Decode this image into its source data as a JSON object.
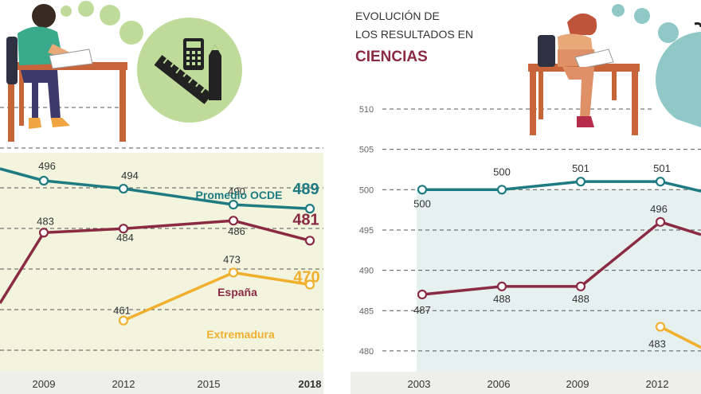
{
  "colors": {
    "ocde": "#1e7b82",
    "espana": "#8b2a43",
    "extremadura": "#f0b02e",
    "left_bg": "#f2f4de",
    "right_bg": "#e6f0ef",
    "axis_band": "#eeeeea",
    "circle_green": "#bfdb9a",
    "circle_teal": "#8fc8c7",
    "desk": "#c8643a",
    "text_dark": "#333333"
  },
  "left_panel": {
    "icon_names": [
      "student-writing-icon",
      "thought-bubble-icon",
      "calculator-icon",
      "ruler-icon",
      "pencil-icon"
    ]
  },
  "right_panel": {
    "title_line1": "EVOLUCIÓN DE",
    "title_line2": "LOS RESULTADOS EN",
    "subject": "CIENCIAS",
    "icon_names": [
      "student-writing-icon",
      "thought-bubble-icon"
    ]
  },
  "chart_data": [
    {
      "type": "line",
      "x": [
        "2009",
        "2012",
        "2015",
        "2018"
      ],
      "x_bold_last": true,
      "series": [
        {
          "name": "Promedio OCDE",
          "values": [
            496,
            494,
            490,
            489
          ],
          "point_labels": [
            "496",
            "494",
            "490",
            "489"
          ],
          "color_key": "ocde"
        },
        {
          "name": "España",
          "values": [
            483,
            484,
            486,
            481
          ],
          "point_labels": [
            "483",
            "484",
            "486",
            "481"
          ],
          "color_key": "espana"
        },
        {
          "name": "Extremadura",
          "values": [
            null,
            461,
            473,
            470
          ],
          "point_labels": [
            "",
            "461",
            "473",
            "470"
          ],
          "color_key": "extremadura"
        }
      ]
    },
    {
      "type": "line",
      "x": [
        "2003",
        "2006",
        "2009",
        "2012"
      ],
      "y_ticks": [
        "510",
        "505",
        "500",
        "495",
        "490",
        "485",
        "480"
      ],
      "ylim": [
        480,
        510
      ],
      "series": [
        {
          "name": "Promedio OCDE",
          "values": [
            500,
            500,
            501,
            501
          ],
          "point_labels": [
            "500",
            "500",
            "501",
            "501"
          ],
          "color_key": "ocde"
        },
        {
          "name": "España",
          "values": [
            487,
            488,
            488,
            496
          ],
          "point_labels": [
            "487",
            "488",
            "488",
            "496"
          ],
          "color_key": "espana"
        },
        {
          "name": "Extremadura",
          "values": [
            null,
            null,
            null,
            483
          ],
          "point_labels": [
            "",
            "",
            "",
            "483"
          ],
          "color_key": "extremadura"
        }
      ]
    }
  ]
}
